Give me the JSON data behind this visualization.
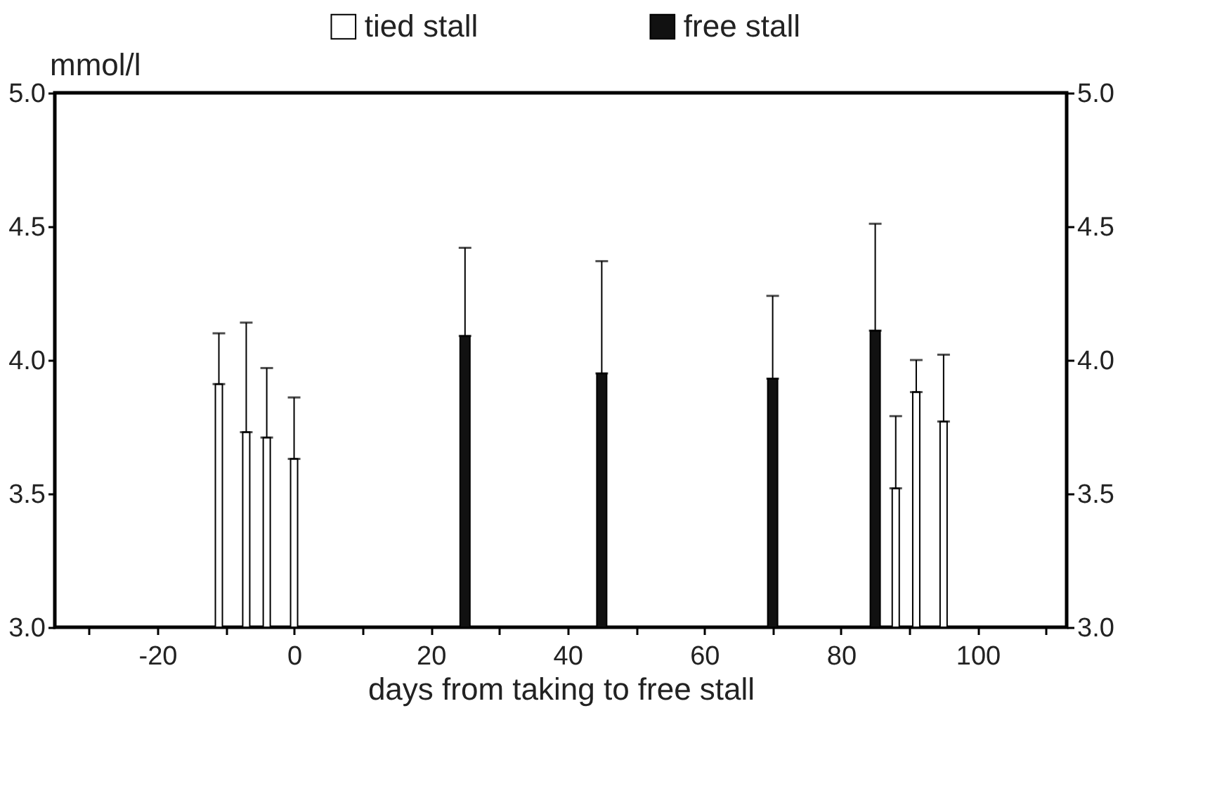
{
  "chart_data": {
    "type": "bar",
    "xlabel": "days from taking to free stall",
    "ylabel": "mmol/l",
    "series": [
      {
        "name": "tied stall",
        "color": "#ffffff",
        "x": [
          -11,
          -7,
          -4,
          0,
          88,
          91,
          95
        ],
        "values": [
          3.91,
          3.73,
          3.71,
          3.63,
          3.52,
          3.88,
          3.77
        ],
        "errors": [
          [
            3.91,
            4.1
          ],
          [
            3.73,
            4.14
          ],
          [
            3.71,
            3.97
          ],
          [
            3.63,
            3.86
          ],
          [
            3.52,
            3.79
          ],
          [
            3.88,
            4.0
          ],
          [
            3.77,
            4.02
          ]
        ]
      },
      {
        "name": "free stall",
        "color": "#111111",
        "x": [
          25,
          45,
          70,
          85
        ],
        "values": [
          4.09,
          3.95,
          3.93,
          4.11
        ],
        "errors": [
          [
            4.09,
            4.42
          ],
          [
            3.95,
            4.37
          ],
          [
            3.93,
            4.24
          ],
          [
            4.11,
            4.51
          ]
        ]
      }
    ],
    "xlim": [
      -35,
      113
    ],
    "xticks": [
      {
        "value": -30,
        "label": null
      },
      -20,
      {
        "value": -10,
        "label": null
      },
      0,
      {
        "value": 10,
        "label": null
      },
      20,
      {
        "value": 30,
        "label": null
      },
      40,
      {
        "value": 50,
        "label": null
      },
      60,
      {
        "value": 70,
        "label": null
      },
      80,
      {
        "value": 90,
        "label": null
      },
      100,
      {
        "value": 110,
        "label": null
      }
    ],
    "ylim": [
      3.0,
      5.0
    ],
    "yticks": [
      {
        "value": 3.0,
        "label": "3.0"
      },
      {
        "value": 3.5,
        "label": "3.5"
      },
      {
        "value": 4.0,
        "label": "4.0"
      },
      {
        "value": 4.5,
        "label": "4.5"
      },
      {
        "value": 5.0,
        "label": "5.0"
      }
    ],
    "y2lim": [
      3.0,
      5.0
    ],
    "y2ticks": [
      {
        "value": 3.0,
        "label": "3.0"
      },
      {
        "value": 3.5,
        "label": "3.5"
      },
      {
        "value": 4.0,
        "label": "4.0"
      },
      {
        "value": 4.5,
        "label": "4.5"
      },
      {
        "value": 5.0,
        "label": "5.0"
      }
    ],
    "legend": "top",
    "grid": false
  }
}
